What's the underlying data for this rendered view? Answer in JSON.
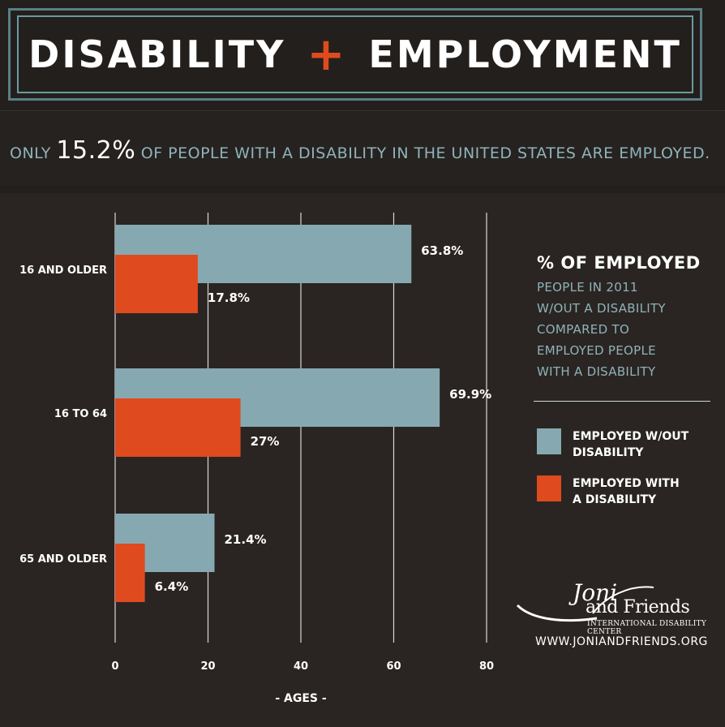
{
  "header": {
    "title_left": "DISABILITY",
    "title_plus": "+",
    "title_right": "EMPLOYMENT"
  },
  "subtitle": {
    "prefix": "ONLY",
    "highlight": "15.2%",
    "suffix": "OF PEOPLE WITH A DISABILITY IN THE UNITED STATES ARE EMPLOYED."
  },
  "legend": {
    "title": "% OF EMPLOYED",
    "desc_lines": [
      "PEOPLE IN 2011",
      "W/OUT A DISABILITY",
      "COMPARED TO",
      "EMPLOYED PEOPLE",
      "WITH A DISABILITY"
    ],
    "item_without": [
      "EMPLOYED W/OUT",
      "DISABILITY"
    ],
    "item_with": [
      "EMPLOYED WITH",
      "A DISABILITY"
    ]
  },
  "logo": {
    "script_mark": "Joni",
    "name": "and Friends",
    "sub": "INTERNATIONAL DISABILITY CENTER",
    "website": "WWW.JONIANDFRIENDS.ORG"
  },
  "colors": {
    "without_disability": "#86a9b1",
    "with_disability": "#e04a1f",
    "grid": "#d8d8d8",
    "accent_plus": "#e04a1f"
  },
  "chart_data": {
    "type": "bar",
    "orientation": "horizontal",
    "categories": [
      "16 AND OLDER",
      "16 TO 64",
      "65 AND OLDER"
    ],
    "series": [
      {
        "name": "EMPLOYED W/OUT DISABILITY",
        "values": [
          63.8,
          69.9,
          21.4
        ],
        "labels": [
          "63.8%",
          "69.9%",
          "21.4%"
        ]
      },
      {
        "name": "EMPLOYED WITH A DISABILITY",
        "values": [
          17.8,
          27,
          6.4
        ],
        "labels": [
          "17.8%",
          "27%",
          "6.4%"
        ]
      }
    ],
    "xlabel": "- AGES -",
    "xlim": [
      0,
      80
    ],
    "xticks": [
      "0",
      "20",
      "40",
      "60",
      "80"
    ],
    "grid": true,
    "legend_position": "right"
  }
}
